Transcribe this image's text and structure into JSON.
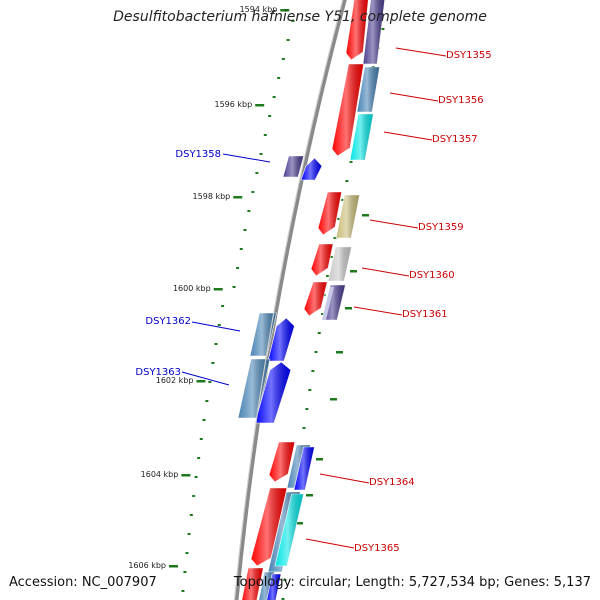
{
  "header": {
    "title": "Desulfitobacterium hafniense Y51, complete genome"
  },
  "footer": {
    "accession": "Accession: NC_007907",
    "topology": "Topology: circular; Length: 5,727,534 bp; Genes: 5,137"
  },
  "colors": {
    "backbone": "#8a8a8a",
    "tick": "#1d7a1d",
    "label_right": "#cc0000",
    "label_left": "#0000cc",
    "red": "#ff0000",
    "navy": "#4a3d8f",
    "steel": "#4682b4",
    "cyan": "#00e5e5",
    "khaki": "#c8bb77",
    "gray": "#c8c8c8",
    "blue": "#0000ff"
  },
  "scale": {
    "labels": [
      {
        "text": "1594 kbp",
        "faded": true
      },
      {
        "text": "1596 kbp"
      },
      {
        "text": "1598 kbp"
      },
      {
        "text": "1600 kbp"
      },
      {
        "text": "1602 kbp"
      },
      {
        "text": "1604 kbp"
      },
      {
        "text": "1606 kbp"
      }
    ]
  },
  "labels": {
    "DSY1355": "DSY1355",
    "DSY1356": "DSY1356",
    "DSY1357": "DSY1357",
    "DSY1358": "DSY1358",
    "DSY1359": "DSY1359",
    "DSY1360": "DSY1360",
    "DSY1361": "DSY1361",
    "DSY1362": "DSY1362",
    "DSY1363": "DSY1363",
    "DSY1364": "DSY1364",
    "DSY1365": "DSY1365"
  },
  "genes": [
    {
      "id": "DSY1355",
      "strand": "+",
      "track": "inner",
      "color": "red",
      "start": "top",
      "end": "DSY1355"
    },
    {
      "id": "DSY1355",
      "strand": "+",
      "track": "outer",
      "color": "navy"
    },
    {
      "id": "DSY1356",
      "strand": "+",
      "track": "inner",
      "color": "red"
    },
    {
      "id": "DSY1356",
      "strand": "+",
      "track": "outer",
      "color": "steel"
    },
    {
      "id": "DSY1357",
      "strand": "+",
      "track": "outer",
      "color": "cyan"
    },
    {
      "id": "DSY1358",
      "strand": "-",
      "track": "outer",
      "color": "navy"
    },
    {
      "id": "DSY1358",
      "strand": "-",
      "track": "inner",
      "color": "blue"
    },
    {
      "id": "DSY1359",
      "strand": "+",
      "track": "inner",
      "color": "red"
    },
    {
      "id": "DSY1359",
      "strand": "+",
      "track": "outer",
      "color": "khaki"
    },
    {
      "id": "DSY1360",
      "strand": "+",
      "track": "inner",
      "color": "red"
    },
    {
      "id": "DSY1360",
      "strand": "+",
      "track": "outer",
      "color": "gray"
    },
    {
      "id": "DSY1361",
      "strand": "+",
      "track": "inner",
      "color": "red"
    },
    {
      "id": "DSY1361",
      "strand": "+",
      "track": "outer",
      "color": "navy"
    },
    {
      "id": "DSY1362",
      "strand": "-",
      "track": "outer",
      "color": "steel"
    },
    {
      "id": "DSY1362",
      "strand": "-",
      "track": "inner",
      "color": "blue"
    },
    {
      "id": "DSY1363",
      "strand": "-",
      "track": "outer",
      "color": "steel"
    },
    {
      "id": "DSY1363",
      "strand": "-",
      "track": "inner",
      "color": "blue"
    },
    {
      "id": "DSY1364",
      "strand": "+",
      "track": "inner",
      "color": "red"
    },
    {
      "id": "DSY1364",
      "strand": "+",
      "track": "middle",
      "color": "steel"
    },
    {
      "id": "DSY1364",
      "strand": "+",
      "track": "outer",
      "color": "blue"
    },
    {
      "id": "DSY1365",
      "strand": "+",
      "track": "inner",
      "color": "red"
    },
    {
      "id": "DSY1365",
      "strand": "+",
      "track": "middle",
      "color": "steel"
    },
    {
      "id": "DSY1365",
      "strand": "+",
      "track": "outer",
      "color": "cyan"
    }
  ]
}
